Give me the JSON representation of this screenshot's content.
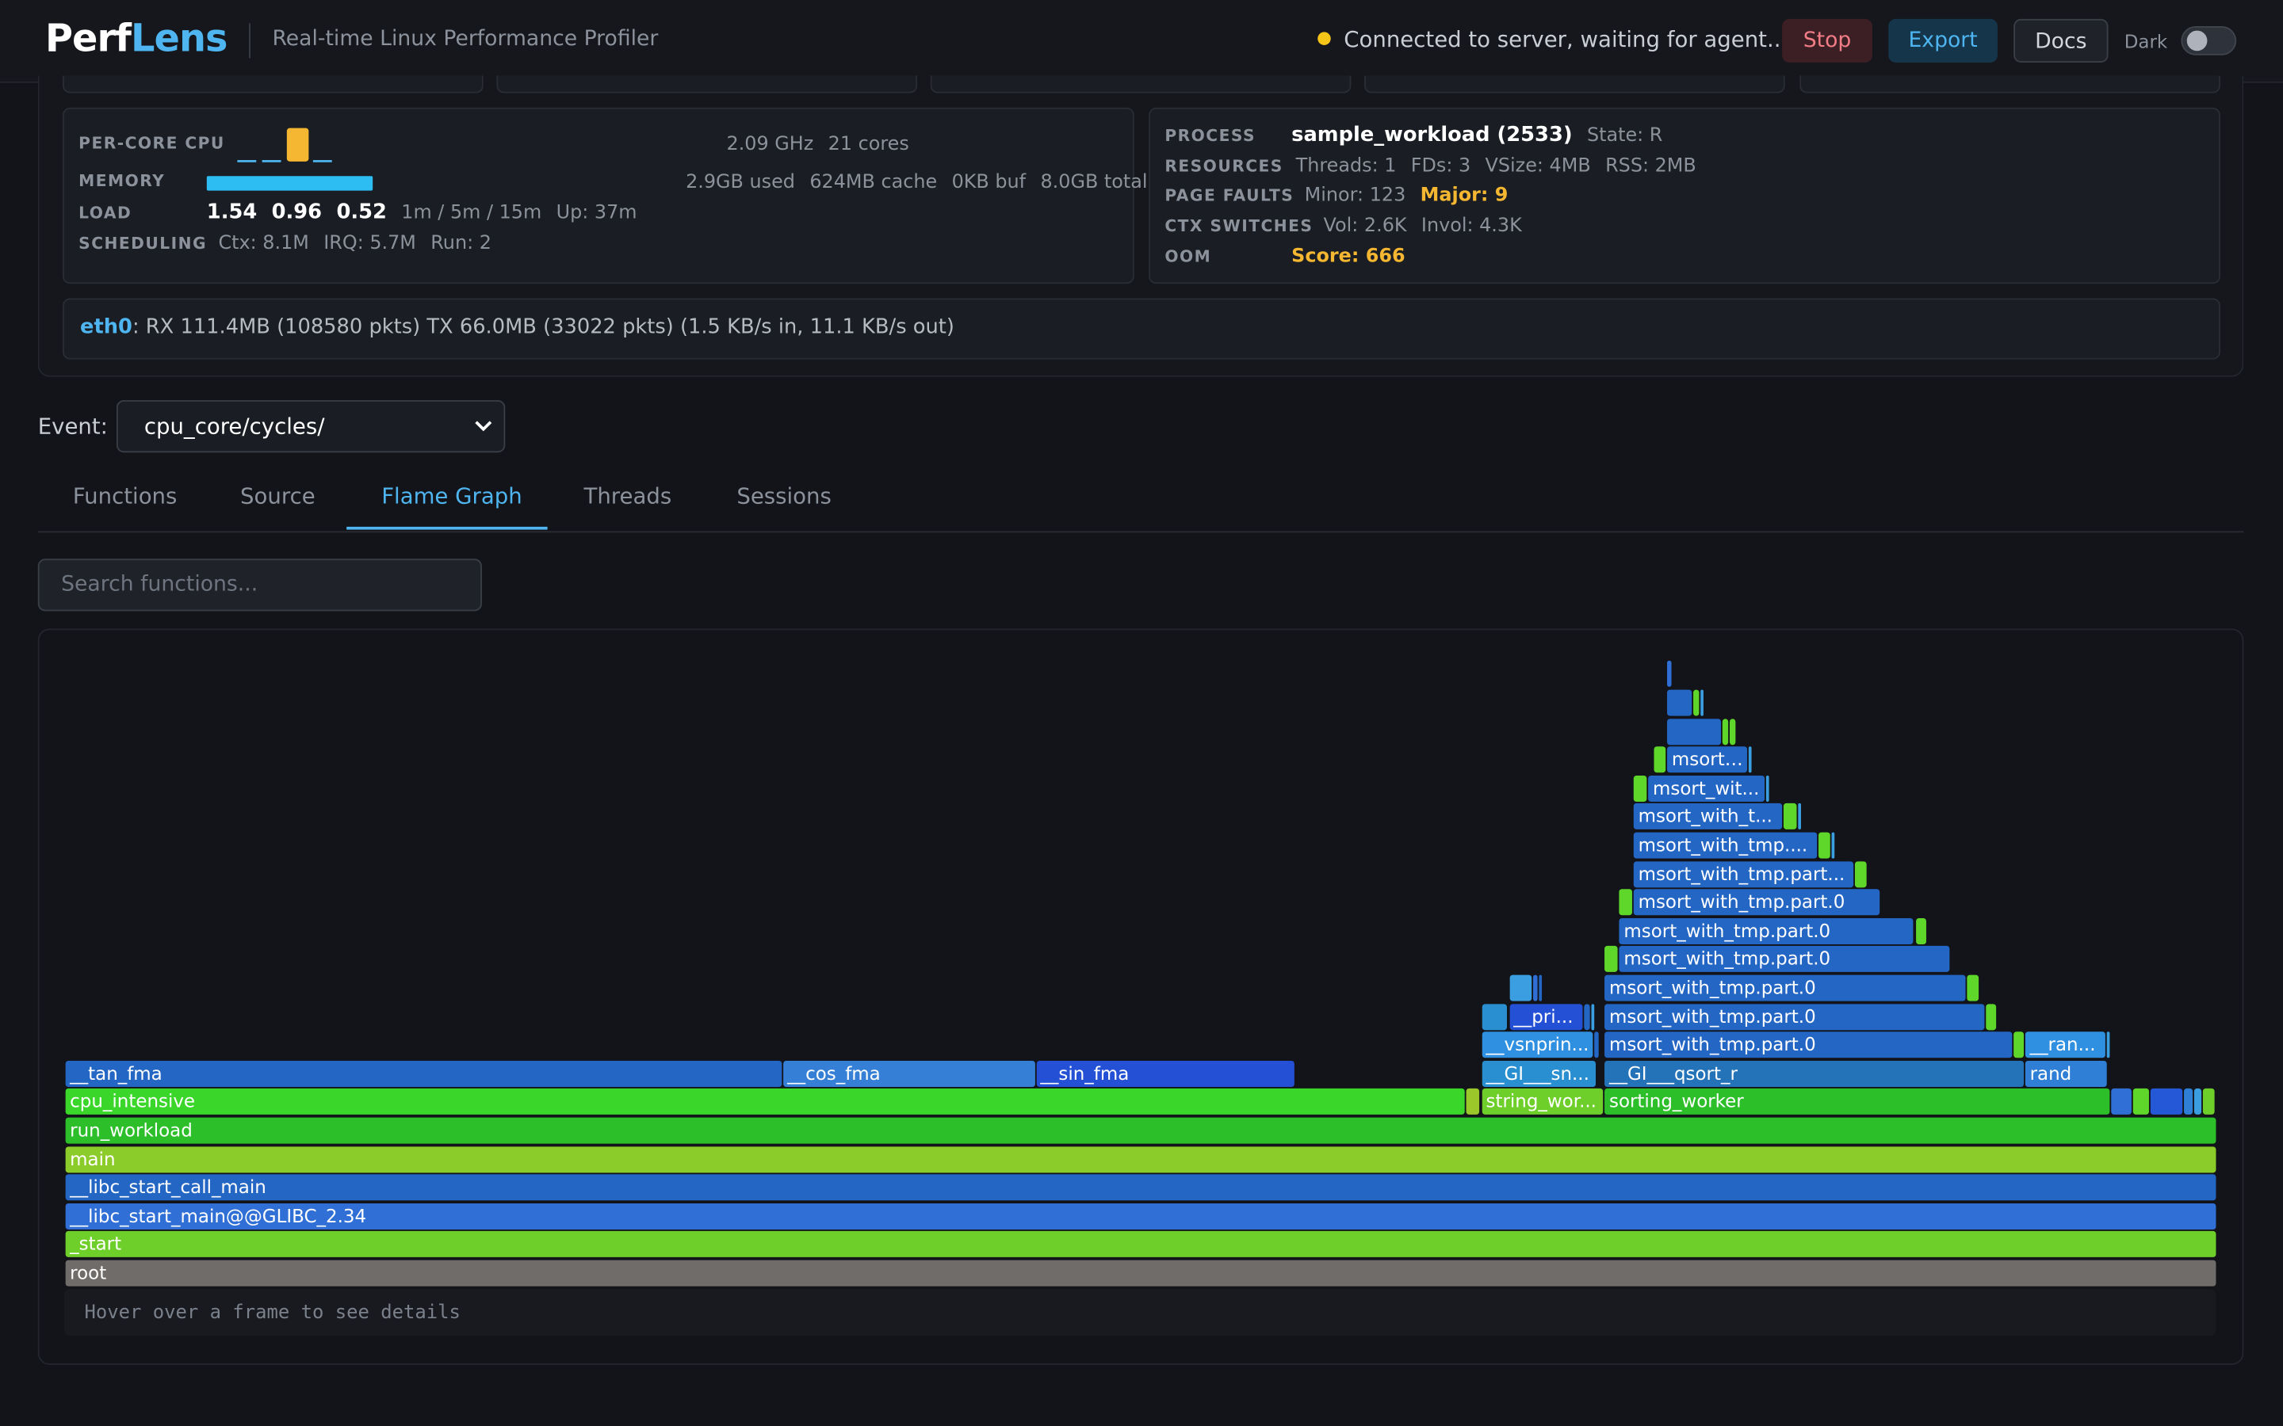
{
  "header": {
    "logo_a": "Perf",
    "logo_b": "Lens",
    "subtitle": "Real-time Linux Performance Profiler",
    "status_text": "Connected to server, waiting for agent...",
    "stop_label": "Stop",
    "export_label": "Export",
    "docs_label": "Docs",
    "dark_label": "Dark"
  },
  "system": {
    "per_core_cpu_label": "PER-CORE CPU",
    "cpu_freq": "2.09 GHz",
    "cpu_cores": "21 cores",
    "memory_label": "MEMORY",
    "mem_used": "2.9GB used",
    "mem_cache": "624MB cache",
    "mem_buf": "0KB buf",
    "mem_total": "8.0GB total",
    "load_label": "LOAD",
    "load1": "1.54",
    "load5": "0.96",
    "load15": "0.52",
    "load_desc": "1m / 5m / 15m",
    "uptime": "Up: 37m",
    "scheduling_label": "SCHEDULING",
    "ctx": "Ctx: 8.1M",
    "irq": "IRQ: 5.7M",
    "run": "Run: 2"
  },
  "process": {
    "process_label": "PROCESS",
    "name": "sample_workload (2533)",
    "state": "State: R",
    "resources_label": "RESOURCES",
    "threads": "Threads: 1",
    "fds": "FDs: 3",
    "vsize": "VSize: 4MB",
    "rss": "RSS: 2MB",
    "page_faults_label": "PAGE FAULTS",
    "minor": "Minor: 123",
    "major": "Major: 9",
    "ctx_switches_label": "CTX SWITCHES",
    "vol": "Vol: 2.6K",
    "invol": "Invol: 4.3K",
    "oom_label": "OOM",
    "oom_score": "Score: 666"
  },
  "network": {
    "iface": "eth0",
    "stats": ": RX 111.4MB (108580 pkts) TX 66.0MB (33022 pkts) (1.5 KB/s in, 11.1 KB/s out)"
  },
  "event": {
    "label": "Event:",
    "selected": "cpu_core/cycles/"
  },
  "tabs": [
    {
      "label": "Functions"
    },
    {
      "label": "Source"
    },
    {
      "label": "Flame Graph"
    },
    {
      "label": "Threads"
    },
    {
      "label": "Sessions"
    }
  ],
  "search": {
    "placeholder": "Search functions..."
  },
  "flamegraph": {
    "hint": "Hover over a frame to see details",
    "frames": [
      {
        "label": "root",
        "start": 0,
        "end": 1,
        "depth": 0,
        "color": "#6f6c6a"
      },
      {
        "label": "_start",
        "start": 0,
        "end": 1,
        "depth": 1,
        "color": "#6fcf2a"
      },
      {
        "label": "__libc_start_main@@GLIBC_2.34",
        "start": 0,
        "end": 1,
        "depth": 2,
        "color": "#2f6fd6"
      },
      {
        "label": "__libc_start_call_main",
        "start": 0,
        "end": 1,
        "depth": 3,
        "color": "#2466c4"
      },
      {
        "label": "main",
        "start": 0,
        "end": 1,
        "depth": 4,
        "color": "#8ccc2a"
      },
      {
        "label": "run_workload",
        "start": 0,
        "end": 1,
        "depth": 5,
        "color": "#2dbf2a"
      },
      {
        "label": "cpu_intensive",
        "start": 0,
        "end": 0.6505,
        "depth": 6,
        "color": "#3bd62a"
      },
      {
        "label": "",
        "start": 0.651,
        "end": 0.6577,
        "depth": 6,
        "color": "#9bc72a"
      },
      {
        "label": "string_wor...",
        "start": 0.6585,
        "end": 0.7152,
        "depth": 6,
        "color": "#6fcf2a"
      },
      {
        "label": "sorting_worker",
        "start": 0.7158,
        "end": 0.9506,
        "depth": 6,
        "color": "#2dbf2a"
      },
      {
        "label": "",
        "start": 0.9513,
        "end": 0.9607,
        "depth": 6,
        "color": "#2f6fd6"
      },
      {
        "label": "",
        "start": 0.9614,
        "end": 0.9688,
        "depth": 6,
        "color": "#5fd62a"
      },
      {
        "label": "",
        "start": 0.9695,
        "end": 0.9844,
        "depth": 6,
        "color": "#2458d6"
      },
      {
        "label": "",
        "start": 0.9851,
        "end": 0.9892,
        "depth": 6,
        "color": "#2f7fd6"
      },
      {
        "label": "",
        "start": 0.9898,
        "end": 0.9932,
        "depth": 6,
        "color": "#3a9ee0"
      },
      {
        "label": "",
        "start": 0.9939,
        "end": 0.9993,
        "depth": 6,
        "color": "#6fcf2a"
      },
      {
        "label": "__tan_fma",
        "start": 0,
        "end": 0.3329,
        "depth": 7,
        "color": "#2466c4"
      },
      {
        "label": "__cos_fma",
        "start": 0.3336,
        "end": 0.4506,
        "depth": 7,
        "color": "#3580d6"
      },
      {
        "label": "__sin_fma",
        "start": 0.4513,
        "end": 0.5711,
        "depth": 7,
        "color": "#2450d6"
      },
      {
        "label": "__GI___sn...",
        "start": 0.6585,
        "end": 0.7118,
        "depth": 7,
        "color": "#2a8fd0"
      },
      {
        "label": "__GI___qsort_r",
        "start": 0.7158,
        "end": 0.9107,
        "depth": 7,
        "color": "#2472b8"
      },
      {
        "label": "rand",
        "start": 0.9114,
        "end": 0.9493,
        "depth": 7,
        "color": "#2f7fd6"
      },
      {
        "label": "__vsnprin...",
        "start": 0.6585,
        "end": 0.7104,
        "depth": 8,
        "color": "#2f8fe0"
      },
      {
        "label": "",
        "start": 0.7111,
        "end": 0.7131,
        "depth": 8,
        "color": "#2466c4"
      },
      {
        "label": "msort_with_tmp.part.0",
        "start": 0.7158,
        "end": 0.9053,
        "depth": 8,
        "color": "#2466c4"
      },
      {
        "label": "",
        "start": 0.906,
        "end": 0.9107,
        "depth": 8,
        "color": "#5fd62a"
      },
      {
        "label": "__ran...",
        "start": 0.9114,
        "end": 0.9486,
        "depth": 8,
        "color": "#2f8fe0"
      },
      {
        "label": "",
        "start": 0.9493,
        "end": 0.9506,
        "depth": 8,
        "color": "#3a9ee0"
      },
      {
        "label": "",
        "start": 0.6585,
        "end": 0.6706,
        "depth": 9,
        "color": "#2a8fd0"
      },
      {
        "label": "__pri...",
        "start": 0.6713,
        "end": 0.7057,
        "depth": 9,
        "color": "#2450d6"
      },
      {
        "label": "",
        "start": 0.7064,
        "end": 0.7091,
        "depth": 9,
        "color": "#2466c4"
      },
      {
        "label": "",
        "start": 0.7098,
        "end": 0.7111,
        "depth": 9,
        "color": "#3a9ee0"
      },
      {
        "label": "msort_with_tmp.part.0",
        "start": 0.7158,
        "end": 0.8925,
        "depth": 9,
        "color": "#2466c4"
      },
      {
        "label": "",
        "start": 0.8932,
        "end": 0.898,
        "depth": 9,
        "color": "#5fd62a"
      },
      {
        "label": "",
        "start": 0.6713,
        "end": 0.6821,
        "depth": 10,
        "color": "#3a9ee0"
      },
      {
        "label": "",
        "start": 0.6828,
        "end": 0.6848,
        "depth": 10,
        "color": "#2f6fd6"
      },
      {
        "label": "",
        "start": 0.6855,
        "end": 0.6868,
        "depth": 10,
        "color": "#2466c4"
      },
      {
        "label": "msort_with_tmp.part.0",
        "start": 0.7158,
        "end": 0.8838,
        "depth": 10,
        "color": "#2466c4"
      },
      {
        "label": "",
        "start": 0.8845,
        "end": 0.8899,
        "depth": 10,
        "color": "#5fd62a"
      },
      {
        "label": "",
        "start": 0.7158,
        "end": 0.7219,
        "depth": 11,
        "color": "#5fd62a"
      },
      {
        "label": "msort_with_tmp.part.0",
        "start": 0.7226,
        "end": 0.8758,
        "depth": 11,
        "color": "#2466c4"
      },
      {
        "label": "msort_with_tmp.part.0",
        "start": 0.7226,
        "end": 0.8595,
        "depth": 12,
        "color": "#2466c4"
      },
      {
        "label": "",
        "start": 0.8602,
        "end": 0.8656,
        "depth": 12,
        "color": "#5fd62a"
      },
      {
        "label": "",
        "start": 0.7226,
        "end": 0.7286,
        "depth": 13,
        "color": "#5fd62a"
      },
      {
        "label": "msort_with_tmp.part.0",
        "start": 0.7293,
        "end": 0.8433,
        "depth": 13,
        "color": "#2466c4"
      },
      {
        "label": "msort_with_tmp.part...",
        "start": 0.7293,
        "end": 0.8311,
        "depth": 14,
        "color": "#2466c4"
      },
      {
        "label": "",
        "start": 0.8318,
        "end": 0.8372,
        "depth": 14,
        "color": "#5fd62a"
      },
      {
        "label": "msort_with_tmp....",
        "start": 0.7293,
        "end": 0.8142,
        "depth": 15,
        "color": "#2466c4"
      },
      {
        "label": "",
        "start": 0.8149,
        "end": 0.8203,
        "depth": 15,
        "color": "#5fd62a"
      },
      {
        "label": "",
        "start": 0.821,
        "end": 0.8223,
        "depth": 15,
        "color": "#3a9ee0"
      },
      {
        "label": "msort_with_t...",
        "start": 0.7293,
        "end": 0.7982,
        "depth": 16,
        "color": "#2466c4"
      },
      {
        "label": "",
        "start": 0.7989,
        "end": 0.8047,
        "depth": 16,
        "color": "#5fd62a"
      },
      {
        "label": "",
        "start": 0.8054,
        "end": 0.8068,
        "depth": 16,
        "color": "#3a9ee0"
      },
      {
        "label": "",
        "start": 0.7293,
        "end": 0.7354,
        "depth": 17,
        "color": "#5fd62a"
      },
      {
        "label": "msort_wit...",
        "start": 0.7361,
        "end": 0.7901,
        "depth": 17,
        "color": "#2466c4"
      },
      {
        "label": "",
        "start": 0.7908,
        "end": 0.7922,
        "depth": 17,
        "color": "#3a9ee0"
      },
      {
        "label": "",
        "start": 0.7388,
        "end": 0.7442,
        "depth": 18,
        "color": "#5fd62a"
      },
      {
        "label": "msort_...",
        "start": 0.7449,
        "end": 0.7821,
        "depth": 18,
        "color": "#2466c4"
      },
      {
        "label": "",
        "start": 0.7828,
        "end": 0.7841,
        "depth": 18,
        "color": "#3a9ee0"
      },
      {
        "label": "",
        "start": 0.7449,
        "end": 0.7699,
        "depth": 19,
        "color": "#2466c4"
      },
      {
        "label": "",
        "start": 0.7706,
        "end": 0.7733,
        "depth": 19,
        "color": "#5fd62a"
      },
      {
        "label": "",
        "start": 0.774,
        "end": 0.7767,
        "depth": 19,
        "color": "#5fd62a"
      },
      {
        "label": "",
        "start": 0.7449,
        "end": 0.7564,
        "depth": 20,
        "color": "#2466c4"
      },
      {
        "label": "",
        "start": 0.7571,
        "end": 0.7598,
        "depth": 20,
        "color": "#5fd62a"
      },
      {
        "label": "",
        "start": 0.7605,
        "end": 0.7618,
        "depth": 20,
        "color": "#3a9ee0"
      },
      {
        "label": "",
        "start": 0.7449,
        "end": 0.747,
        "depth": 21,
        "color": "#2f6fd6"
      }
    ]
  }
}
